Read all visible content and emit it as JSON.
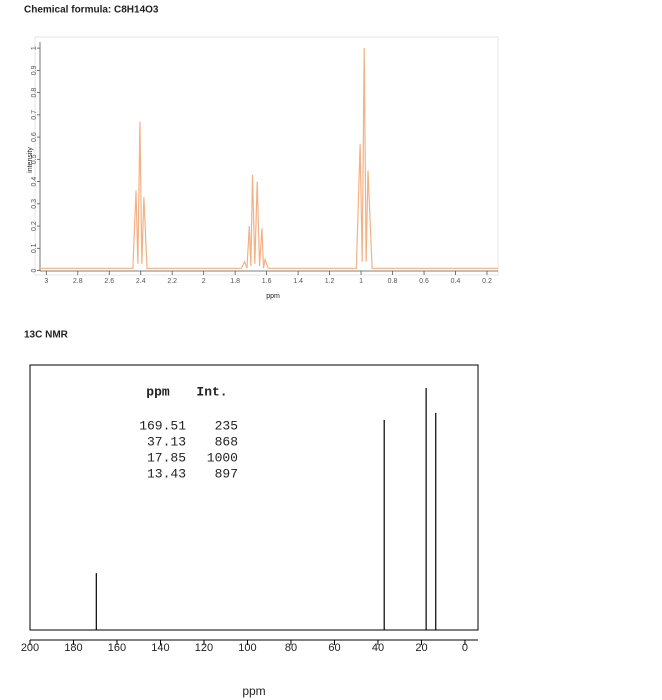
{
  "chart_data": [
    {
      "type": "line",
      "title": "Chemical formula: C8H14O3",
      "x_label": "ppm",
      "y_label": "intensity",
      "color": "#f4b183",
      "x": [
        3.04,
        2.45,
        2.43,
        2.418,
        2.405,
        2.393,
        2.38,
        2.36,
        1.76,
        1.74,
        1.725,
        1.71,
        1.7,
        1.69,
        1.675,
        1.66,
        1.645,
        1.63,
        1.62,
        1.61,
        1.59,
        1.03,
        1.006,
        0.993,
        0.98,
        0.968,
        0.956,
        0.93,
        0.13
      ],
      "values": [
        0.01,
        0.01,
        0.36,
        0.03,
        0.67,
        0.03,
        0.33,
        0.01,
        0.01,
        0.04,
        0.01,
        0.2,
        0.02,
        0.43,
        0.03,
        0.4,
        0.02,
        0.19,
        0.01,
        0.05,
        0.01,
        0.01,
        0.57,
        0.04,
        1.0,
        0.04,
        0.45,
        0.01,
        0.01
      ],
      "xlim": [
        3.04,
        0.13
      ],
      "xticks": [
        3,
        2.8,
        2.6,
        2.4,
        2.2,
        2,
        1.8,
        1.6,
        1.4,
        1.2,
        1,
        0.8,
        0.6,
        0.4,
        0.2
      ],
      "ylim": [
        -0.02,
        1.05
      ],
      "yticks": [
        0,
        0.1,
        0.2,
        0.3,
        0.4,
        0.5,
        0.6,
        0.7,
        0.8,
        0.9,
        1
      ]
    },
    {
      "type": "stick",
      "title": "13C NMR",
      "x_label": "ppm",
      "color": "#000000",
      "columns": [
        "ppm",
        "Int."
      ],
      "x": [
        169.51,
        37.13,
        17.85,
        13.43
      ],
      "values": [
        235,
        868,
        1000,
        897
      ],
      "xlim": [
        200,
        -6
      ],
      "xticks": [
        200,
        180,
        160,
        140,
        120,
        100,
        80,
        60,
        40,
        20,
        0
      ],
      "ylim": [
        0,
        1095
      ]
    }
  ]
}
